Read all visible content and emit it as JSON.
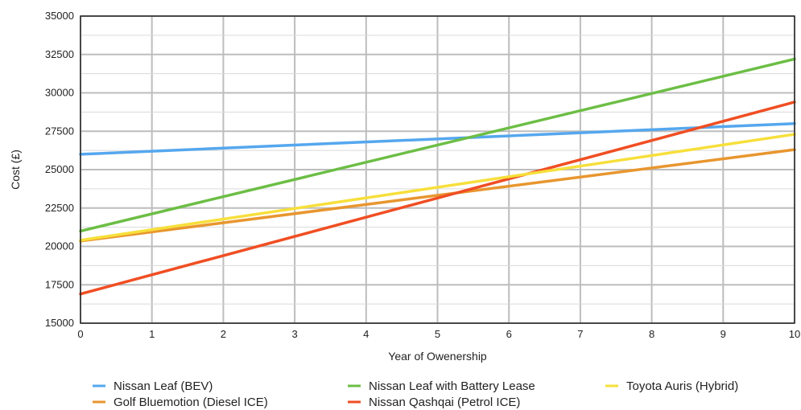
{
  "chart_data": {
    "type": "line",
    "title": "",
    "xlabel": "Year of Owenership",
    "ylabel": "Cost (£)",
    "xlim": [
      0,
      10
    ],
    "ylim": [
      15000,
      35000
    ],
    "x_ticks": [
      "0",
      "1",
      "2",
      "3",
      "4",
      "5",
      "6",
      "7",
      "8",
      "9",
      "10"
    ],
    "y_ticks": [
      "15000",
      "17500",
      "20000",
      "22500",
      "25000",
      "27500",
      "30000",
      "32500",
      "35000"
    ],
    "grid": true,
    "legend_position": "bottom",
    "series": [
      {
        "name": "Nissan Leaf (BEV)",
        "color": "#55A7EE",
        "x": [
          0,
          10
        ],
        "y": [
          26000,
          28000
        ]
      },
      {
        "name": "Golf Bluemotion (Diesel ICE)",
        "color": "#E8962F",
        "x": [
          0,
          10
        ],
        "y": [
          20350,
          26300
        ]
      },
      {
        "name": "Nissan Leaf with Battery Lease",
        "color": "#6CBE45",
        "x": [
          0,
          10
        ],
        "y": [
          21000,
          32200
        ]
      },
      {
        "name": "Nissan Qashqai (Petrol ICE)",
        "color": "#F04E23",
        "x": [
          0,
          10
        ],
        "y": [
          16900,
          29400
        ]
      },
      {
        "name": "Toyota Auris (Hybrid)",
        "color": "#F7DF3B",
        "x": [
          0,
          10
        ],
        "y": [
          20400,
          27300
        ]
      }
    ]
  }
}
